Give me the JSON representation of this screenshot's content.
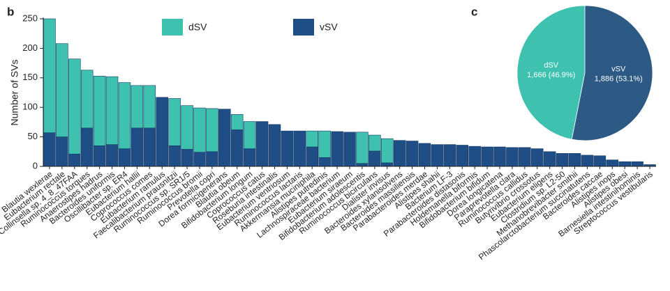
{
  "chart_data": [
    {
      "type": "bar",
      "panel_label": "b",
      "ylabel": "Number of SVs",
      "categories": [
        "Blautia wexlerae",
        "Eubacterium rectale",
        "Collinsella sp. 4_8_47FAA",
        "Ruminococcus torques",
        "Anaerostipes hadrus",
        "Bacteroides uniformis",
        "Oscillibacter sp. ER4",
        "Eubacterium hallii",
        "Coprococcus comes",
        "Eubacterium ramulus",
        "Faecalibacterium prausnitzii",
        "Ruminococcus sp. SR1/5",
        "Ruminococcus bromii",
        "Prevotella copri",
        "Dorea formicigenerans",
        "Blautia obeum",
        "Bifidobacterium longum",
        "Coprococcus catus",
        "Roseburia intestinalis",
        "Eubacterium ventriosum",
        "Ruminococcus lactaris",
        "Akkermansia muciniphila",
        "Alistipes putredinis",
        "Lachnospiraceae bacterium",
        "Eubacterium siraeum",
        "Bifidobacterium adolescentis",
        "Ruminococcus bicirculans",
        "Dialister invisus",
        "Bacteroides xylanisolvens",
        "Bacteroides massiliensis",
        "Parabacteroides merdae",
        "Alistipes shahii",
        "Bacterium LF-3",
        "Parabacteroides distasonis",
        "Holdemanella biformis",
        "Bifidobacterium bifidum",
        "Dorea longicatena",
        "Paraprevotella clara",
        "Ruminococcus callidus",
        "Butyrivibrio crossotus",
        "Eubacterium eligens",
        "Clostridium sp. L2-50",
        "Methanobrevibacter smithii",
        "Phascolarctobacterium succinatutens",
        "Bacteroides caccae",
        "Alistipes inops",
        "Alistipes obesi",
        "Barnesiella intestinihominis",
        "Streptococcus vestibularis"
      ],
      "series": [
        {
          "name": "dSV",
          "color": "#3fc1b0",
          "values": [
            193,
            158,
            161,
            98,
            118,
            115,
            112,
            72,
            72,
            0,
            80,
            74,
            75,
            73,
            0,
            26,
            46,
            0,
            0,
            0,
            0,
            27,
            45,
            0,
            0,
            53,
            27,
            41,
            0,
            0,
            0,
            0,
            0,
            0,
            0,
            0,
            0,
            0,
            0,
            0,
            0,
            0,
            0,
            0,
            0,
            0,
            0,
            0,
            0
          ]
        },
        {
          "name": "vSV",
          "color": "#1f4d85",
          "values": [
            57,
            50,
            21,
            65,
            35,
            37,
            30,
            65,
            65,
            117,
            35,
            29,
            24,
            25,
            97,
            62,
            30,
            76,
            71,
            60,
            60,
            33,
            15,
            59,
            58,
            5,
            26,
            6,
            44,
            43,
            39,
            37,
            37,
            36,
            34,
            33,
            33,
            32,
            32,
            30,
            25,
            22,
            22,
            19,
            18,
            11,
            8,
            8,
            3
          ]
        }
      ],
      "stacked": true,
      "ylim": [
        0,
        250
      ],
      "yticks": [
        0,
        50,
        100,
        150,
        200,
        250
      ]
    },
    {
      "type": "pie",
      "panel_label": "c",
      "labels": [
        "dSV",
        "vSV"
      ],
      "values": [
        1666,
        1886
      ],
      "value_labels": [
        "1,666 (46.9%)",
        "1,886 (53.1%)"
      ],
      "colors": [
        "#3fc1b0",
        "#2d5a84"
      ]
    }
  ]
}
